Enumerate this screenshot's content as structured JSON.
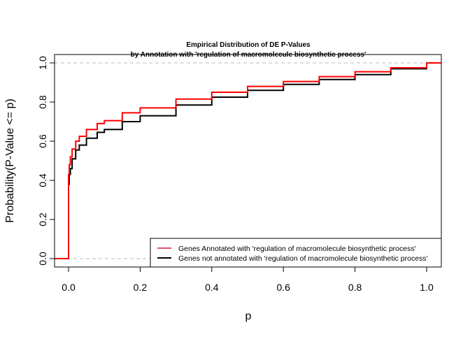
{
  "chart_data": {
    "type": "line",
    "title": "Empirical Distribution of DE P-Values",
    "subtitle": "by Annotation with 'regulation of macromolecule biosynthetic process'",
    "xlabel": "p",
    "ylabel": "Probability(P-Value <= p)",
    "xlim": [
      -0.04,
      1.04
    ],
    "ylim": [
      -0.04,
      1.04
    ],
    "x_ticks": [
      0.0,
      0.2,
      0.4,
      0.6,
      0.8,
      1.0
    ],
    "x_tick_labels": [
      "0.0",
      "0.2",
      "0.4",
      "0.6",
      "0.8",
      "1.0"
    ],
    "y_ticks": [
      0.0,
      0.2,
      0.4,
      0.6,
      0.8,
      1.0
    ],
    "y_tick_labels": [
      "0.0",
      "0.2",
      "0.4",
      "0.6",
      "0.8",
      "1.0"
    ],
    "reference_lines": [
      0,
      1
    ],
    "legend_position": "bottom-right",
    "series": [
      {
        "name": "Genes Annotated with 'regulation of macromolecule biosynthetic process'",
        "color": "#ff0000",
        "legend_color": "#df536b",
        "x": [
          -0.04,
          0,
          0,
          0.002,
          0.005,
          0.01,
          0.02,
          0.03,
          0.05,
          0.08,
          0.1,
          0.15,
          0.2,
          0.3,
          0.4,
          0.5,
          0.6,
          0.7,
          0.8,
          0.9,
          1.0,
          1.04
        ],
        "y": [
          0,
          0,
          0.43,
          0.48,
          0.52,
          0.56,
          0.6,
          0.625,
          0.66,
          0.69,
          0.705,
          0.745,
          0.77,
          0.815,
          0.85,
          0.88,
          0.905,
          0.93,
          0.955,
          0.975,
          1.0,
          1.0
        ]
      },
      {
        "name": "Genes not annotated with 'regulation of macromolecule biosynthetic process'",
        "color": "#000000",
        "legend_color": "#000000",
        "x": [
          0,
          0.002,
          0.005,
          0.01,
          0.02,
          0.03,
          0.05,
          0.08,
          0.1,
          0.15,
          0.2,
          0.3,
          0.4,
          0.5,
          0.6,
          0.7,
          0.8,
          0.9,
          1.0
        ],
        "y": [
          0.38,
          0.43,
          0.46,
          0.51,
          0.555,
          0.58,
          0.615,
          0.645,
          0.66,
          0.7,
          0.73,
          0.785,
          0.825,
          0.86,
          0.89,
          0.915,
          0.94,
          0.97,
          1.0
        ]
      }
    ]
  }
}
